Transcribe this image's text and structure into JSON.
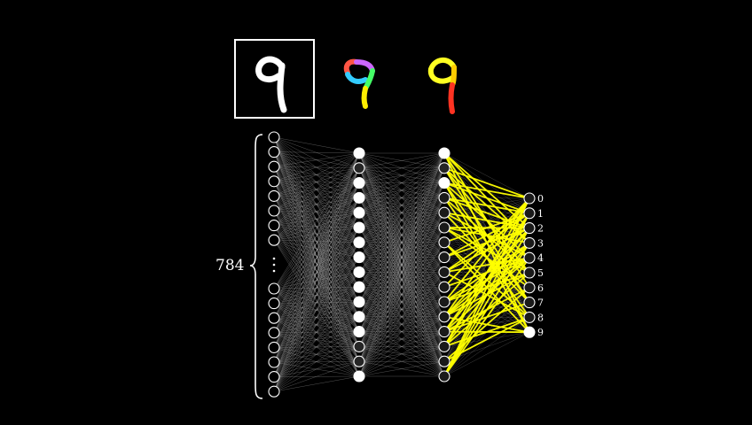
{
  "input_count_label": "784",
  "output_labels": [
    "0",
    "1",
    "2",
    "3",
    "4",
    "5",
    "6",
    "7",
    "8",
    "9"
  ],
  "layers": {
    "input_visible_top": 8,
    "input_visible_bottom": 8,
    "hidden1_count": 16,
    "hidden2_count": 16,
    "output_count": 10
  },
  "activations": {
    "hidden1": [
      1,
      0.15,
      1,
      1,
      1,
      1,
      1,
      1,
      1,
      1,
      1,
      1,
      1,
      0.15,
      0.15,
      1
    ],
    "hidden2": [
      1,
      0.15,
      1,
      0.1,
      0.1,
      0.1,
      0.1,
      0.1,
      0.1,
      0.1,
      0.1,
      0.1,
      0.1,
      0.1,
      0.1,
      0.1
    ],
    "output": [
      0.1,
      0.1,
      0.1,
      0.1,
      0.1,
      0.1,
      0.1,
      0.1,
      0.1,
      1
    ]
  },
  "digit_images": [
    {
      "name": "input-digit",
      "style": "white",
      "framed": true
    },
    {
      "name": "component-digit-multicolor",
      "style": "multicolor",
      "framed": false
    },
    {
      "name": "component-digit-yellow-red",
      "style": "yellow-red",
      "framed": false
    }
  ],
  "colors": {
    "background": "#000000",
    "neuron_stroke": "#ffffff",
    "edge_default": "#bbbbbb",
    "edge_highlight": "#ffff00"
  }
}
